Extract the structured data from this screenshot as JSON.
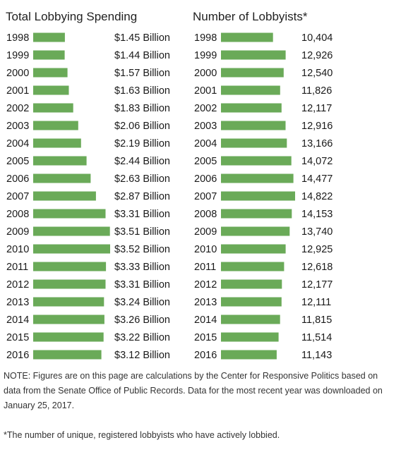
{
  "chart_data": [
    {
      "type": "bar",
      "orientation": "horizontal",
      "title": "Total Lobbying Spending",
      "categories": [
        "1998",
        "1999",
        "2000",
        "2001",
        "2002",
        "2003",
        "2004",
        "2005",
        "2006",
        "2007",
        "2008",
        "2009",
        "2010",
        "2011",
        "2012",
        "2013",
        "2014",
        "2015",
        "2016"
      ],
      "values": [
        1.45,
        1.44,
        1.57,
        1.63,
        1.83,
        2.06,
        2.19,
        2.44,
        2.63,
        2.87,
        3.31,
        3.51,
        3.52,
        3.33,
        3.31,
        3.24,
        3.26,
        3.22,
        3.12
      ],
      "value_labels": [
        "$1.45 Billion",
        "$1.44 Billion",
        "$1.57 Billion",
        "$1.63 Billion",
        "$1.83 Billion",
        "$2.06 Billion",
        "$2.19 Billion",
        "$2.44 Billion",
        "$2.63 Billion",
        "$2.87 Billion",
        "$3.31 Billion",
        "$3.51 Billion",
        "$3.52 Billion",
        "$3.33 Billion",
        "$3.31 Billion",
        "$3.24 Billion",
        "$3.26 Billion",
        "$3.22 Billion",
        "$3.12 Billion"
      ],
      "color": "#6aaa58"
    },
    {
      "type": "bar",
      "orientation": "horizontal",
      "title": "Number of Lobbyists*",
      "categories": [
        "1998",
        "1999",
        "2000",
        "2001",
        "2002",
        "2003",
        "2004",
        "2005",
        "2006",
        "2007",
        "2008",
        "2009",
        "2010",
        "2011",
        "2012",
        "2013",
        "2014",
        "2015",
        "2016"
      ],
      "values": [
        10404,
        12926,
        12540,
        11826,
        12117,
        12916,
        13166,
        14072,
        14477,
        14822,
        14153,
        13740,
        12925,
        12618,
        12177,
        12111,
        11815,
        11514,
        11143
      ],
      "value_labels": [
        "10,404",
        "12,926",
        "12,540",
        "11,826",
        "12,117",
        "12,916",
        "13,166",
        "14,072",
        "14,477",
        "14,822",
        "14,153",
        "13,740",
        "12,925",
        "12,618",
        "12,177",
        "12,111",
        "11,815",
        "11,514",
        "11,143"
      ],
      "color": "#6aaa58"
    }
  ],
  "notes": {
    "main": "NOTE: Figures are on this page are calculations by the Center for Responsive Politics based on data from the Senate Office of Public Records. Data for the most recent year was downloaded on January 25, 2017.",
    "footnote": "*The number of unique, registered lobbyists who have actively lobbied."
  }
}
